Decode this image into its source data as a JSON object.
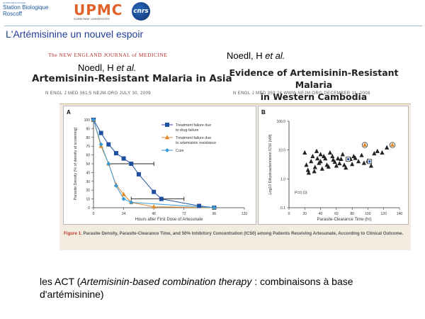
{
  "logos": {
    "sbr_tiny": "STATION BIOLOGIQUE",
    "sbr_line1": "Station Biologique",
    "sbr_line2": "Roscoff",
    "upmc": "UPMC",
    "upmc_sub": "SORBONNE UNIVERSITÉS",
    "cnrs": "cnrs"
  },
  "slide_title": "L'Artémisinine un nouvel espoir",
  "journal_header": "The NEW ENGLAND JOURNAL of MEDICINE",
  "article1": {
    "authors_prefix": "Noedl, H",
    "authors_suffix": "et al.",
    "title": "Artemisinin-Resistant Malaria in Asia",
    "citation": "N ENGL J MED 361;5   NEJM.ORG   JULY 30, 2009"
  },
  "article2": {
    "authors_prefix": "Noedl, H",
    "authors_suffix": "et al.",
    "title_line1": "Evidence of Artemisinin-Resistant Malaria",
    "title_line2": "in Western Cambodia",
    "citation": "N ENGL J MED 359;24   WWW.NEJM.ORG   DECEMBER 11, 2008"
  },
  "figure_caption": {
    "label": "Figure 1.",
    "text": "Parasite Density, Parasite-Clearance Time, and 50% Inhibitory Concentration (IC50) among Patients Receiving Artesunate, According to Clinical Outcome."
  },
  "bottom_text": {
    "prefix": "les ACT (",
    "italic": "Artemisinin-based combination therapy",
    "suffix": " : combinaisons à base d'artémisinine)"
  },
  "colors": {
    "title_blue": "#1f3f99",
    "drug_failure": "#1f4fa0",
    "resistance": "#e08a2a",
    "cure": "#3a9bd5",
    "caption_label": "#c0392b"
  },
  "chart_data": [
    {
      "type": "line",
      "panel_label": "A",
      "xlabel": "Hours after First Dose of Artesunate",
      "ylabel": "Parasite Density (% of density at screening)",
      "xlim": [
        0,
        120
      ],
      "ylim": [
        0,
        100
      ],
      "x_ticks": [
        0,
        24,
        48,
        72,
        96,
        120
      ],
      "y_ticks": [
        0,
        10,
        20,
        30,
        40,
        50,
        60,
        70,
        80,
        90,
        100
      ],
      "legend_position": "top-right",
      "series": [
        {
          "name": "Treatment failure due to drug failure",
          "marker": "square",
          "color": "#1f4fa0",
          "x": [
            0,
            6,
            12,
            18,
            24,
            30,
            36,
            48,
            54,
            84,
            96
          ],
          "y": [
            100,
            85,
            72,
            62,
            56,
            50,
            38,
            18,
            10,
            2,
            0
          ],
          "errorbars": [
            {
              "x": 30,
              "y": 50,
              "xmin": 12,
              "xmax": 48
            },
            {
              "x": 54,
              "y": 10,
              "xmin": 30,
              "xmax": 72
            }
          ]
        },
        {
          "name": "Treatment failure due to artemisinin resistance",
          "marker": "triangle",
          "color": "#e08a2a",
          "x": [
            0,
            6,
            12,
            18,
            24,
            30,
            48,
            96
          ],
          "y": [
            100,
            70,
            50,
            26,
            15,
            6,
            1,
            0
          ]
        },
        {
          "name": "Cure",
          "marker": "diamond",
          "color": "#3a9bd5",
          "x": [
            0,
            6,
            12,
            18,
            24,
            30,
            96
          ],
          "y": [
            100,
            72,
            50,
            25,
            10,
            6,
            0
          ]
        }
      ]
    },
    {
      "type": "scatter",
      "panel_label": "B",
      "xlabel": "Parasite-Clearance Time (hr)",
      "ylabel": "Log10 Dihydroartemisinin IC50 (nM)",
      "xlim": [
        0,
        140
      ],
      "ylim": [
        0.1,
        100
      ],
      "y_scale": "log",
      "x_ticks": [
        0,
        20,
        40,
        60,
        80,
        100,
        120,
        140
      ],
      "y_ticks": [
        0.1,
        1.0,
        10.0,
        100.0
      ],
      "y_tick_labels": [
        "0.1",
        "1.0",
        "10.0",
        "100.0"
      ],
      "annotation": "P=0.03",
      "points_cure": {
        "x": [
          20,
          22,
          24,
          25,
          28,
          30,
          32,
          33,
          35,
          36,
          38,
          40,
          40,
          42,
          44,
          46,
          48,
          50,
          52,
          55,
          56,
          58,
          60,
          62,
          64,
          66,
          68,
          70,
          72,
          78,
          80,
          82,
          84,
          88,
          92,
          95,
          100,
          104,
          108,
          112,
          118,
          124
        ],
        "y": [
          8,
          3,
          2,
          1.6,
          4,
          6,
          1.8,
          2.5,
          9,
          5,
          3.5,
          4,
          7,
          2.2,
          6,
          5,
          3,
          2.6,
          8,
          6,
          4.5,
          3.8,
          2.8,
          5,
          3.4,
          4.8,
          7,
          3,
          2.4,
          4.8,
          3.2,
          6,
          5.2,
          4,
          6.5,
          3.5,
          4.2,
          2.8,
          7.5,
          9,
          8,
          12
        ]
      },
      "points_drug_failure": {
        "x": [
          75,
          102
        ],
        "y": [
          4.8,
          4
        ]
      },
      "points_resistance": {
        "x": [
          96,
          131
        ],
        "y": [
          15,
          15
        ]
      }
    }
  ]
}
